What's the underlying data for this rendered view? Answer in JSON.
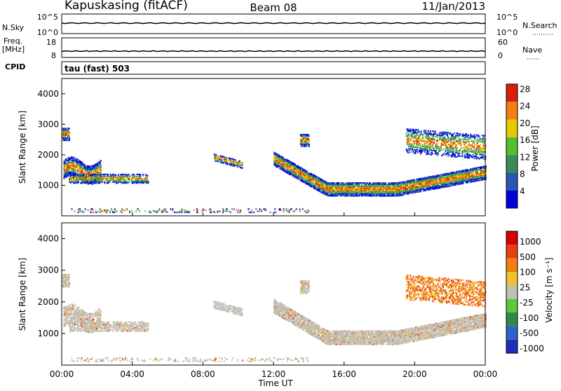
{
  "header": {
    "site": "Kapuskasing (fitACF)",
    "beam": "Beam 08",
    "date": "11/Jan/2013"
  },
  "strips": {
    "nsky_label": "N.Sky",
    "nsky_ticks": [
      "10^5",
      "10^0"
    ],
    "nsearch_label": "N.Search",
    "nsearch_ticks": [
      "10^5",
      "10^0"
    ],
    "freq_label_1": "Freq.",
    "freq_label_2": "[MHz]",
    "freq_ticks": [
      "18",
      "8"
    ],
    "nave_label": "Nave",
    "nave_ticks": [
      "60",
      "0"
    ],
    "cpid_label": "CPID",
    "cpid_value": "tau (fast) 503"
  },
  "chart_data": [
    {
      "type": "heatmap",
      "name": "power",
      "ylabel": "Slant Range [km]",
      "ylim": [
        0,
        4500
      ],
      "yticks": [
        "1000",
        "2000",
        "3000",
        "4000"
      ],
      "colorbar_label": "Power [dB]",
      "colorbar_ticks": [
        "4",
        "8",
        "12",
        "16",
        "20",
        "24",
        "28"
      ],
      "colorbar_colors": [
        "#0000d8",
        "#2a56b4",
        "#3a8a5a",
        "#54c02a",
        "#e8c800",
        "#f08010",
        "#d82008"
      ]
    },
    {
      "type": "heatmap",
      "name": "velocity",
      "ylabel": "Slant Range [km]",
      "ylim": [
        0,
        4500
      ],
      "yticks": [
        "1000",
        "2000",
        "3000",
        "4000"
      ],
      "colorbar_label": "Velocity [m s⁻¹]",
      "colorbar_ticks": [
        "1000",
        "500",
        "100",
        "25",
        "-25",
        "-100",
        "-500",
        "-1000"
      ],
      "colorbar_colors": [
        "#1c2fb8",
        "#2e64c8",
        "#2f8a4c",
        "#5ac83a",
        "#c0c0b8",
        "#f0c030",
        "#f08010",
        "#e84010",
        "#d80000"
      ]
    }
  ],
  "xaxis": {
    "label": "Time UT",
    "ticks": [
      "00:00",
      "04:00",
      "08:00",
      "12:00",
      "16:00",
      "20:00",
      "00:00"
    ]
  }
}
